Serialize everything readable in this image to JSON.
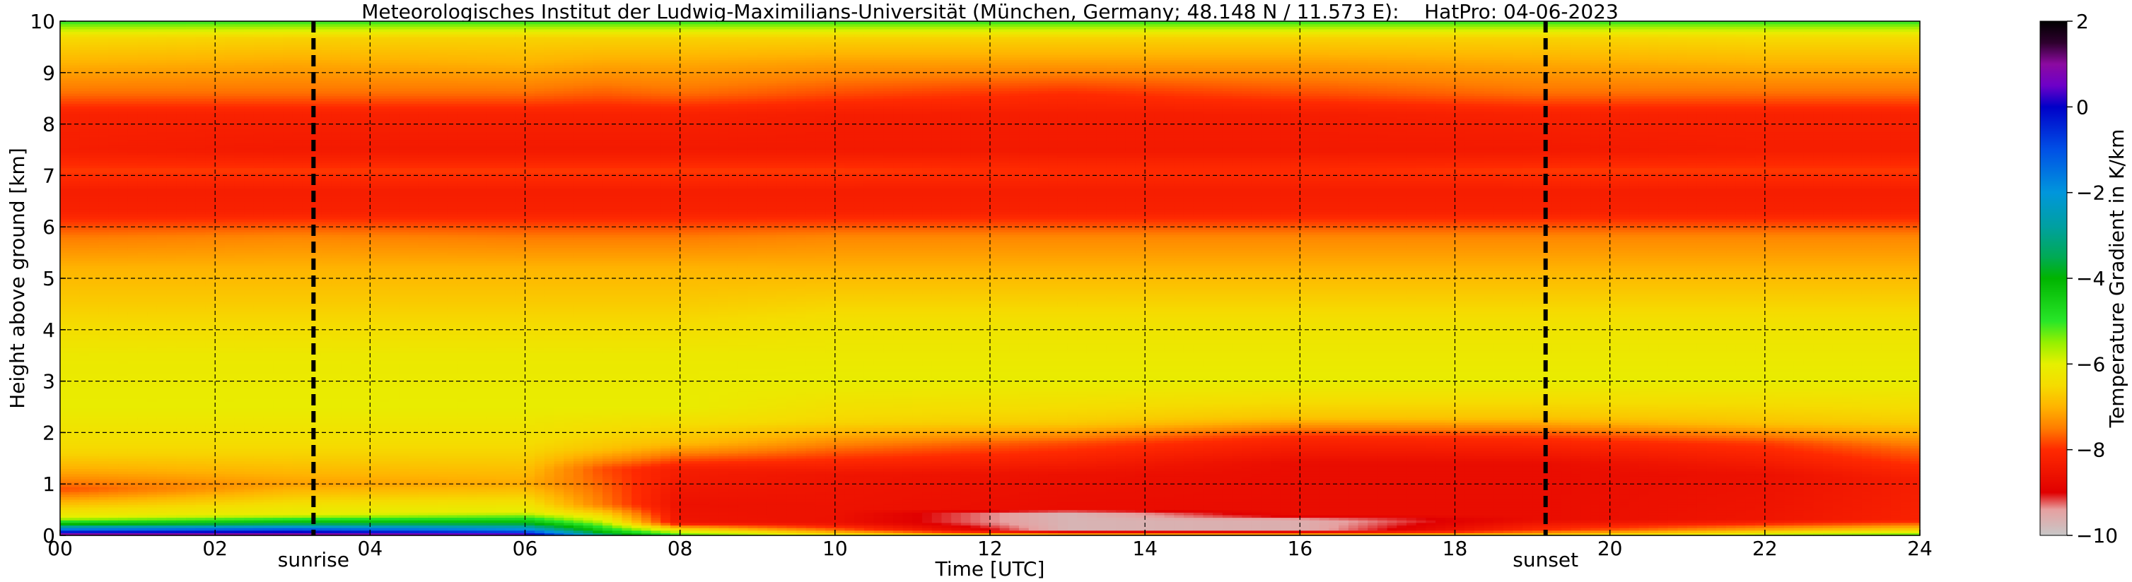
{
  "chart_data": {
    "type": "heatmap",
    "title": "Meteorologisches Institut der Ludwig-Maximilians-Universität (München, Germany; 48.148 N / 11.573 E):    HatPro: 04-06-2023",
    "xlabel": "Time [UTC]",
    "ylabel": "Height above ground [km]",
    "xlim": [
      0,
      24
    ],
    "ylim": [
      0,
      10
    ],
    "x_ticks": [
      "00",
      "02",
      "04",
      "06",
      "08",
      "10",
      "12",
      "14",
      "16",
      "18",
      "20",
      "22",
      "24"
    ],
    "y_ticks": [
      "0",
      "1",
      "2",
      "3",
      "4",
      "5",
      "6",
      "7",
      "8",
      "9",
      "10"
    ],
    "grid": true,
    "grid_style": "dashed",
    "markers": [
      {
        "label": "sunrise",
        "x": 3.27
      },
      {
        "label": "sunset",
        "x": 19.17
      }
    ],
    "colorbar": {
      "label": "Temperature Gradient in K/km",
      "range": [
        -10,
        2
      ],
      "ticks": [
        "2",
        "0",
        "−2",
        "−4",
        "−6",
        "−8",
        "−10"
      ],
      "stops": [
        {
          "value": -10,
          "color": "#c8c8c8"
        },
        {
          "value": -9.4,
          "color": "#e6a0a0"
        },
        {
          "value": -9,
          "color": "#e00000"
        },
        {
          "value": -8,
          "color": "#ff2a00"
        },
        {
          "value": -7.5,
          "color": "#ff7d00"
        },
        {
          "value": -7,
          "color": "#ffb400"
        },
        {
          "value": -6.5,
          "color": "#f5dc00"
        },
        {
          "value": -6,
          "color": "#e6f000"
        },
        {
          "value": -5.5,
          "color": "#96f000"
        },
        {
          "value": -5,
          "color": "#28e628"
        },
        {
          "value": -4,
          "color": "#00b400"
        },
        {
          "value": -3.5,
          "color": "#00aa55"
        },
        {
          "value": -2.8,
          "color": "#00a0a0"
        },
        {
          "value": -2,
          "color": "#0096dc"
        },
        {
          "value": -1,
          "color": "#0050e6"
        },
        {
          "value": 0,
          "color": "#0000c8"
        },
        {
          "value": 0.5,
          "color": "#6e00c8"
        },
        {
          "value": 1,
          "color": "#8c0aa0"
        },
        {
          "value": 1.5,
          "color": "#2d002d"
        },
        {
          "value": 2,
          "color": "#000000"
        }
      ]
    },
    "profiles": [
      {
        "t": 0,
        "levels": [
          [
            0,
            1.5
          ],
          [
            0.1,
            -1
          ],
          [
            0.22,
            -4
          ],
          [
            0.35,
            -6
          ],
          [
            0.9,
            -7.8
          ],
          [
            1.2,
            -7.2
          ],
          [
            1.6,
            -6.6
          ],
          [
            2.5,
            -6.1
          ],
          [
            3.5,
            -6.2
          ],
          [
            4.5,
            -6.7
          ],
          [
            5.2,
            -7
          ],
          [
            5.8,
            -7.5
          ],
          [
            6.3,
            -8.2
          ],
          [
            6.7,
            -8.3
          ],
          [
            7.1,
            -7.9
          ],
          [
            7.5,
            -8.3
          ],
          [
            8.2,
            -8.2
          ],
          [
            8.6,
            -7.6
          ],
          [
            9.2,
            -7
          ],
          [
            9.7,
            -6.5
          ],
          [
            10,
            -5
          ]
        ]
      },
      {
        "t": 3,
        "levels": [
          [
            0,
            1.5
          ],
          [
            0.12,
            -1
          ],
          [
            0.25,
            -4
          ],
          [
            0.4,
            -6
          ],
          [
            1,
            -7.2
          ],
          [
            1.6,
            -6.6
          ],
          [
            2.5,
            -6.1
          ],
          [
            3.5,
            -6.2
          ],
          [
            4.5,
            -6.7
          ],
          [
            5.2,
            -7
          ],
          [
            5.8,
            -7.4
          ],
          [
            6.3,
            -8.2
          ],
          [
            6.7,
            -8.3
          ],
          [
            7.1,
            -7.9
          ],
          [
            7.5,
            -8.4
          ],
          [
            8.2,
            -8.2
          ],
          [
            8.6,
            -7.6
          ],
          [
            9.2,
            -7.1
          ],
          [
            9.7,
            -6.6
          ],
          [
            10,
            -5
          ]
        ]
      },
      {
        "t": 6,
        "levels": [
          [
            0,
            1
          ],
          [
            0.1,
            -1.5
          ],
          [
            0.25,
            -4
          ],
          [
            0.45,
            -6
          ],
          [
            1,
            -7.1
          ],
          [
            1.6,
            -6.6
          ],
          [
            2.5,
            -6.1
          ],
          [
            3.5,
            -6.2
          ],
          [
            4.5,
            -6.7
          ],
          [
            5.2,
            -7
          ],
          [
            5.8,
            -7.5
          ],
          [
            6.3,
            -8.2
          ],
          [
            6.7,
            -8.3
          ],
          [
            7.1,
            -7.9
          ],
          [
            7.5,
            -8.4
          ],
          [
            8.2,
            -8.2
          ],
          [
            8.6,
            -7.6
          ],
          [
            9.2,
            -7
          ],
          [
            9.7,
            -6.6
          ],
          [
            10,
            -5
          ]
        ]
      },
      {
        "t": 7,
        "levels": [
          [
            0,
            -3
          ],
          [
            0.1,
            -4.5
          ],
          [
            0.3,
            -6
          ],
          [
            0.6,
            -7.5
          ],
          [
            1.3,
            -7.8
          ],
          [
            1.7,
            -6.8
          ],
          [
            2.5,
            -6.1
          ],
          [
            3.5,
            -6.2
          ],
          [
            4.5,
            -6.7
          ],
          [
            5.2,
            -7
          ],
          [
            5.8,
            -7.5
          ],
          [
            6.3,
            -8.2
          ],
          [
            6.7,
            -8.3
          ],
          [
            7.1,
            -7.9
          ],
          [
            7.5,
            -8.4
          ],
          [
            8.2,
            -8.2
          ],
          [
            8.6,
            -7.7
          ],
          [
            9.2,
            -7.1
          ],
          [
            9.7,
            -6.6
          ],
          [
            10,
            -5
          ]
        ]
      },
      {
        "t": 8,
        "levels": [
          [
            0,
            -5
          ],
          [
            0.1,
            -6.2
          ],
          [
            0.25,
            -8.5
          ],
          [
            0.6,
            -8.6
          ],
          [
            1.3,
            -8.3
          ],
          [
            1.8,
            -6.9
          ],
          [
            2.5,
            -6.1
          ],
          [
            3.5,
            -6.2
          ],
          [
            4.5,
            -6.7
          ],
          [
            5.2,
            -7
          ],
          [
            5.8,
            -7.5
          ],
          [
            6.3,
            -8.2
          ],
          [
            6.7,
            -8.3
          ],
          [
            7.1,
            -7.9
          ],
          [
            7.5,
            -8.4
          ],
          [
            8.2,
            -8.2
          ],
          [
            8.6,
            -7.6
          ],
          [
            9.2,
            -7.1
          ],
          [
            9.7,
            -6.6
          ],
          [
            10,
            -5
          ]
        ]
      },
      {
        "t": 10,
        "levels": [
          [
            0,
            -6
          ],
          [
            0.1,
            -7.5
          ],
          [
            0.25,
            -8.6
          ],
          [
            1.2,
            -8.5
          ],
          [
            1.7,
            -7.6
          ],
          [
            2.2,
            -6.6
          ],
          [
            3,
            -6.1
          ],
          [
            4,
            -6.3
          ],
          [
            5,
            -6.9
          ],
          [
            5.8,
            -7.4
          ],
          [
            6.3,
            -8.2
          ],
          [
            6.7,
            -8.3
          ],
          [
            7.1,
            -7.9
          ],
          [
            7.5,
            -8.4
          ],
          [
            8.2,
            -8.3
          ],
          [
            8.6,
            -7.8
          ],
          [
            9.2,
            -7.2
          ],
          [
            9.7,
            -6.6
          ],
          [
            10,
            -5
          ]
        ]
      },
      {
        "t": 13,
        "levels": [
          [
            0,
            -6.5
          ],
          [
            0.1,
            -9.7
          ],
          [
            0.45,
            -9.7
          ],
          [
            0.5,
            -8.7
          ],
          [
            1.2,
            -8.6
          ],
          [
            1.8,
            -7.8
          ],
          [
            2.2,
            -6.7
          ],
          [
            3,
            -6.1
          ],
          [
            4,
            -6.3
          ],
          [
            5,
            -6.9
          ],
          [
            5.8,
            -7.4
          ],
          [
            6.3,
            -8.2
          ],
          [
            6.7,
            -8.3
          ],
          [
            7.1,
            -8
          ],
          [
            7.5,
            -8.4
          ],
          [
            8.2,
            -8.3
          ],
          [
            8.6,
            -8
          ],
          [
            9.2,
            -7.2
          ],
          [
            9.7,
            -6.6
          ],
          [
            10,
            -5
          ]
        ]
      },
      {
        "t": 16,
        "levels": [
          [
            0,
            -6.5
          ],
          [
            0.1,
            -9.6
          ],
          [
            0.3,
            -9.6
          ],
          [
            0.4,
            -8.7
          ],
          [
            1.4,
            -8.7
          ],
          [
            1.9,
            -8.1
          ],
          [
            2.3,
            -6.8
          ],
          [
            3,
            -6.1
          ],
          [
            4,
            -6.3
          ],
          [
            5,
            -6.9
          ],
          [
            5.8,
            -7.4
          ],
          [
            6.3,
            -8.2
          ],
          [
            6.7,
            -8.3
          ],
          [
            7.1,
            -8
          ],
          [
            7.5,
            -8.4
          ],
          [
            8.2,
            -8.3
          ],
          [
            8.6,
            -7.8
          ],
          [
            9.2,
            -7.2
          ],
          [
            9.7,
            -6.6
          ],
          [
            10,
            -5
          ]
        ]
      },
      {
        "t": 19,
        "levels": [
          [
            0,
            -6.5
          ],
          [
            0.1,
            -8
          ],
          [
            0.3,
            -8.7
          ],
          [
            1.4,
            -8.7
          ],
          [
            1.9,
            -8
          ],
          [
            2.3,
            -6.8
          ],
          [
            3,
            -6.1
          ],
          [
            4,
            -6.3
          ],
          [
            5,
            -6.9
          ],
          [
            5.8,
            -7.4
          ],
          [
            6.3,
            -8.2
          ],
          [
            6.7,
            -8.3
          ],
          [
            7.1,
            -7.9
          ],
          [
            7.5,
            -8.4
          ],
          [
            8.2,
            -8.2
          ],
          [
            8.6,
            -7.6
          ],
          [
            9.2,
            -7.1
          ],
          [
            9.7,
            -6.6
          ],
          [
            10,
            -5
          ]
        ]
      },
      {
        "t": 22,
        "levels": [
          [
            0,
            -5.5
          ],
          [
            0.1,
            -7
          ],
          [
            0.3,
            -8.5
          ],
          [
            1.2,
            -8.6
          ],
          [
            1.8,
            -7.9
          ],
          [
            2.2,
            -6.8
          ],
          [
            3,
            -6.1
          ],
          [
            4,
            -6.3
          ],
          [
            5,
            -6.9
          ],
          [
            5.8,
            -7.4
          ],
          [
            6.3,
            -8.2
          ],
          [
            6.7,
            -8.3
          ],
          [
            7.1,
            -7.9
          ],
          [
            7.5,
            -8.3
          ],
          [
            8.2,
            -8.2
          ],
          [
            8.6,
            -7.6
          ],
          [
            9.2,
            -7
          ],
          [
            9.7,
            -6.5
          ],
          [
            10,
            -5
          ]
        ]
      },
      {
        "t": 24,
        "levels": [
          [
            0,
            -5
          ],
          [
            0.1,
            -6.5
          ],
          [
            0.3,
            -8.2
          ],
          [
            1.1,
            -8.3
          ],
          [
            1.7,
            -7.6
          ],
          [
            2.2,
            -6.7
          ],
          [
            3,
            -6.1
          ],
          [
            4,
            -6.3
          ],
          [
            5,
            -6.9
          ],
          [
            5.8,
            -7.4
          ],
          [
            6.3,
            -8.2
          ],
          [
            6.7,
            -8.3
          ],
          [
            7.1,
            -7.9
          ],
          [
            7.5,
            -8.3
          ],
          [
            8.2,
            -8.2
          ],
          [
            8.6,
            -7.6
          ],
          [
            9.2,
            -7
          ],
          [
            9.7,
            -6.5
          ],
          [
            10,
            -5
          ]
        ]
      }
    ]
  }
}
